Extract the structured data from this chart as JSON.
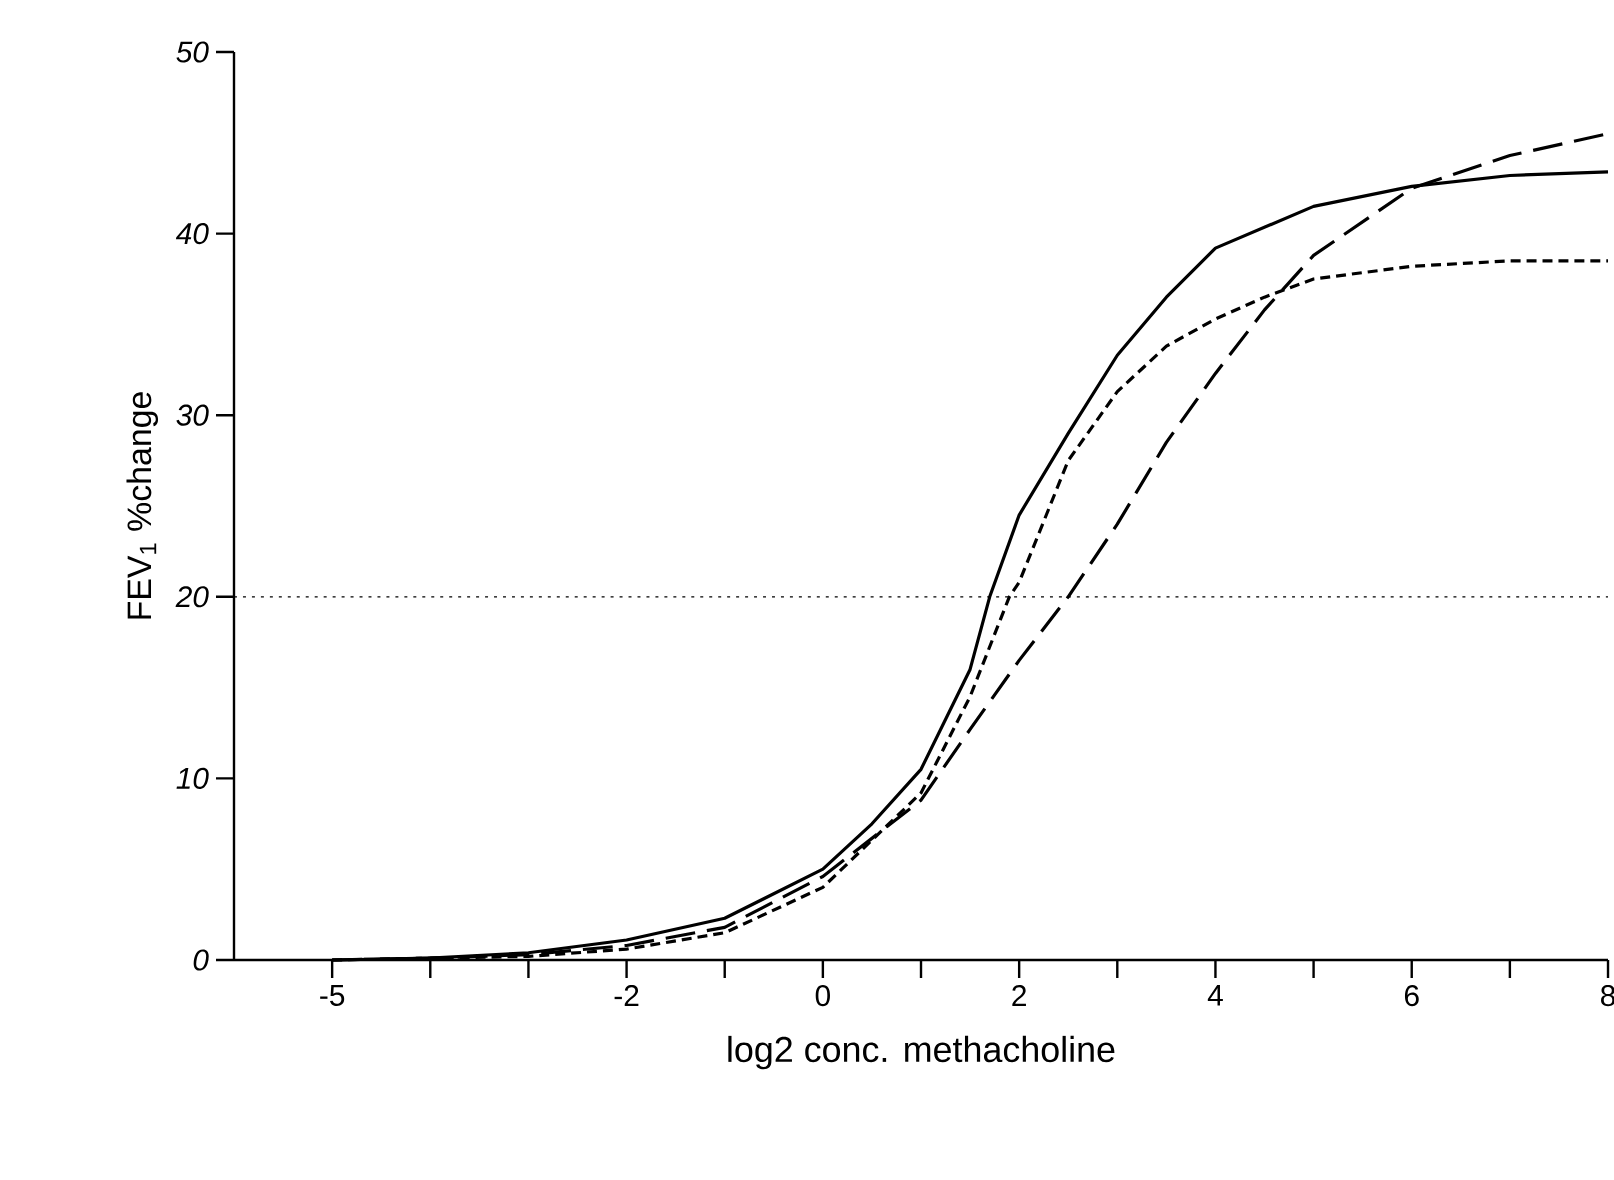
{
  "chart_data": {
    "type": "line",
    "xlabel": "log2 conc. methacholine",
    "ylabel": "FEV$_{1}$ %change",
    "xlim": [
      -6,
      8
    ],
    "ylim": [
      0,
      50
    ],
    "xticks": [
      {
        "value": -5,
        "label": "-5"
      },
      {
        "value": -4,
        "label": null
      },
      {
        "value": -3,
        "label": null
      },
      {
        "value": -2,
        "label": "-2"
      },
      {
        "value": -1,
        "label": null
      },
      {
        "value": 0,
        "label": "0"
      },
      {
        "value": 1,
        "label": null
      },
      {
        "value": 2,
        "label": "2"
      },
      {
        "value": 3,
        "label": null
      },
      {
        "value": 4,
        "label": "4"
      },
      {
        "value": 5,
        "label": null
      },
      {
        "value": 6,
        "label": "6"
      },
      {
        "value": 7,
        "label": null
      },
      {
        "value": 8,
        "label": "8"
      }
    ],
    "yticks": [
      0,
      10,
      20,
      30,
      40,
      50
    ],
    "ref_lines": [
      {
        "axis": "y",
        "value": 20,
        "line_style": "dotted",
        "color": "#000000"
      }
    ],
    "series": [
      {
        "color": "#000000",
        "line_style": "solid",
        "x": [
          -5,
          -4,
          -3,
          -2,
          -1,
          0,
          0.5,
          1,
          1.5,
          1.7,
          2,
          2.5,
          3,
          3.5,
          4,
          5,
          6,
          7,
          8
        ],
        "values": [
          0,
          0.1,
          0.4,
          1.1,
          2.3,
          5,
          7.5,
          10.5,
          16,
          20,
          24.5,
          29,
          33.3,
          36.5,
          39.2,
          41.5,
          42.6,
          43.2,
          43.4
        ]
      },
      {
        "color": "#000000",
        "line_style": "dashed",
        "x": [
          -5,
          -4,
          -3,
          -2,
          -1,
          0,
          1,
          1.5,
          1.9,
          2,
          2.5,
          3,
          3.5,
          4,
          4.5,
          5,
          6,
          7,
          8
        ],
        "values": [
          0,
          0.1,
          0.2,
          0.6,
          1.5,
          4,
          9.2,
          14.5,
          20,
          20.8,
          27.5,
          31.3,
          33.8,
          35.3,
          36.5,
          37.5,
          38.2,
          38.5,
          38.5
        ]
      },
      {
        "color": "#000000",
        "line_style": "dashed",
        "x": [
          -5,
          -4,
          -3,
          -2,
          -1,
          0,
          1,
          1.5,
          2,
          2.5,
          3,
          3.5,
          4,
          4.5,
          5,
          6,
          7,
          8
        ],
        "values": [
          0,
          0.1,
          0.3,
          0.8,
          1.8,
          4.6,
          8.8,
          12.7,
          16.5,
          20,
          24,
          28.5,
          32.3,
          35.8,
          38.8,
          42.5,
          44.3,
          45.5
        ]
      }
    ]
  }
}
